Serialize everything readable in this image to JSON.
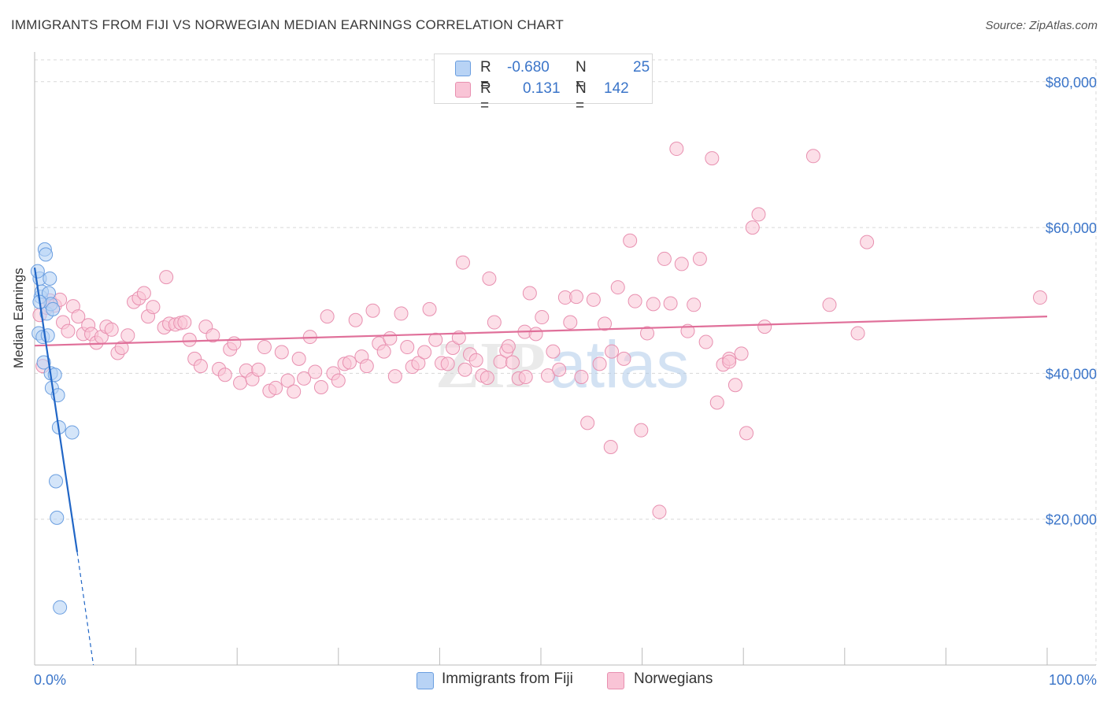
{
  "title": "IMMIGRANTS FROM FIJI VS NORWEGIAN MEDIAN EARNINGS CORRELATION CHART",
  "source": "Source: ZipAtlas.com",
  "watermark": {
    "zip": "ZIP",
    "atlas": "atlas"
  },
  "legend": {
    "fiji": {
      "r_label": "R =",
      "r_value": "-0.680",
      "n_label": "N =",
      "n_value": "25"
    },
    "norwegians": {
      "r_label": "R =",
      "r_value": "0.131",
      "n_label": "N =",
      "n_value": "142"
    }
  },
  "colors": {
    "fiji_fill": "#b8d3f5",
    "fiji_stroke": "#6a9ee0",
    "fiji_line": "#2166c6",
    "nor_fill": "#f9c4d6",
    "nor_stroke": "#e890b0",
    "nor_line": "#e0709a",
    "axis_text": "#3b75c9",
    "grid": "#d8d8d8"
  },
  "chart_data": {
    "type": "scatter",
    "title": "IMMIGRANTS FROM FIJI VS NORWEGIAN MEDIAN EARNINGS CORRELATION CHART",
    "xlabel": "",
    "ylabel": "Median Earnings",
    "xlim": [
      0,
      100
    ],
    "ylim": [
      0,
      83000
    ],
    "x_tick_labels": {
      "left": "0.0%",
      "right": "100.0%"
    },
    "y_ticks": [
      {
        "value": 20000,
        "label": "$20,000"
      },
      {
        "value": 40000,
        "label": "$40,000"
      },
      {
        "value": 60000,
        "label": "$60,000"
      },
      {
        "value": 80000,
        "label": "$80,000"
      }
    ],
    "series": [
      {
        "name": "Immigrants from Fiji",
        "trend": {
          "x0": 0.0,
          "y0": 54500,
          "x1": 4.2,
          "y1": 15500,
          "dash_to_x": 5.8,
          "dash_to_y": 0
        },
        "points": [
          [
            0.4,
            45500
          ],
          [
            0.5,
            53000
          ],
          [
            0.6,
            50500
          ],
          [
            0.7,
            51200
          ],
          [
            0.8,
            45000
          ],
          [
            0.9,
            41500
          ],
          [
            1.0,
            57000
          ],
          [
            1.1,
            56300
          ],
          [
            1.2,
            48200
          ],
          [
            1.3,
            45200
          ],
          [
            1.4,
            51000
          ],
          [
            1.5,
            53000
          ],
          [
            1.6,
            49500
          ],
          [
            1.6,
            40000
          ],
          [
            1.7,
            38000
          ],
          [
            1.8,
            48800
          ],
          [
            2.0,
            39800
          ],
          [
            2.1,
            25200
          ],
          [
            2.2,
            20200
          ],
          [
            2.3,
            37000
          ],
          [
            2.4,
            32600
          ],
          [
            2.5,
            7900
          ],
          [
            3.7,
            31900
          ],
          [
            0.3,
            54000
          ],
          [
            0.5,
            49800
          ]
        ]
      },
      {
        "name": "Norwegians",
        "trend": {
          "x0": 0.0,
          "y0": 43800,
          "x1": 100.0,
          "y1": 47800
        },
        "points": [
          [
            0.5,
            48000
          ],
          [
            0.8,
            41000
          ],
          [
            1.2,
            49000
          ],
          [
            1.5,
            50000
          ],
          [
            2.0,
            49300
          ],
          [
            2.5,
            50100
          ],
          [
            2.8,
            47000
          ],
          [
            3.3,
            45800
          ],
          [
            3.8,
            49200
          ],
          [
            4.3,
            47800
          ],
          [
            4.8,
            45400
          ],
          [
            5.3,
            46600
          ],
          [
            5.6,
            45400
          ],
          [
            6.1,
            44200
          ],
          [
            6.6,
            45000
          ],
          [
            7.1,
            46400
          ],
          [
            7.6,
            46000
          ],
          [
            8.2,
            42800
          ],
          [
            8.6,
            43500
          ],
          [
            9.2,
            45200
          ],
          [
            9.8,
            49800
          ],
          [
            10.3,
            50300
          ],
          [
            10.8,
            51000
          ],
          [
            11.2,
            47800
          ],
          [
            11.7,
            49100
          ],
          [
            12.8,
            46300
          ],
          [
            13.3,
            46800
          ],
          [
            13.9,
            46700
          ],
          [
            14.4,
            46900
          ],
          [
            14.8,
            47000
          ],
          [
            15.3,
            44600
          ],
          [
            15.8,
            42000
          ],
          [
            16.4,
            41000
          ],
          [
            16.9,
            46400
          ],
          [
            17.6,
            45200
          ],
          [
            18.2,
            40600
          ],
          [
            18.8,
            39800
          ],
          [
            19.3,
            43300
          ],
          [
            19.7,
            44100
          ],
          [
            20.3,
            38700
          ],
          [
            20.9,
            40400
          ],
          [
            21.5,
            39200
          ],
          [
            22.1,
            40500
          ],
          [
            22.7,
            43600
          ],
          [
            23.2,
            37600
          ],
          [
            23.8,
            38000
          ],
          [
            24.4,
            42900
          ],
          [
            25.0,
            39000
          ],
          [
            25.6,
            37500
          ],
          [
            26.1,
            42000
          ],
          [
            26.6,
            39300
          ],
          [
            27.2,
            45000
          ],
          [
            27.7,
            40200
          ],
          [
            28.3,
            38100
          ],
          [
            28.9,
            47800
          ],
          [
            29.5,
            40000
          ],
          [
            30.0,
            39000
          ],
          [
            30.6,
            41300
          ],
          [
            31.1,
            41500
          ],
          [
            31.7,
            47300
          ],
          [
            32.3,
            42300
          ],
          [
            32.8,
            41000
          ],
          [
            33.4,
            48600
          ],
          [
            34.0,
            44100
          ],
          [
            34.5,
            43000
          ],
          [
            35.1,
            44800
          ],
          [
            35.6,
            39600
          ],
          [
            36.2,
            48200
          ],
          [
            36.8,
            43600
          ],
          [
            37.3,
            40900
          ],
          [
            37.9,
            41400
          ],
          [
            38.5,
            42900
          ],
          [
            39.0,
            48800
          ],
          [
            39.6,
            44600
          ],
          [
            40.2,
            41400
          ],
          [
            40.8,
            41300
          ],
          [
            41.3,
            43500
          ],
          [
            41.9,
            44900
          ],
          [
            42.5,
            40500
          ],
          [
            43.0,
            42600
          ],
          [
            43.6,
            41800
          ],
          [
            44.2,
            39700
          ],
          [
            44.7,
            39400
          ],
          [
            45.4,
            47000
          ],
          [
            46.0,
            41600
          ],
          [
            46.6,
            43100
          ],
          [
            47.2,
            41500
          ],
          [
            47.8,
            39300
          ],
          [
            48.4,
            45700
          ],
          [
            48.9,
            51000
          ],
          [
            49.5,
            45400
          ],
          [
            50.1,
            47700
          ],
          [
            50.7,
            39700
          ],
          [
            51.2,
            43000
          ],
          [
            51.8,
            40500
          ],
          [
            52.4,
            50400
          ],
          [
            52.9,
            47000
          ],
          [
            53.5,
            50500
          ],
          [
            54.0,
            39500
          ],
          [
            54.6,
            33200
          ],
          [
            55.2,
            50100
          ],
          [
            55.8,
            41300
          ],
          [
            56.3,
            46800
          ],
          [
            57.0,
            43000
          ],
          [
            57.6,
            51800
          ],
          [
            58.2,
            42000
          ],
          [
            58.8,
            58200
          ],
          [
            59.3,
            49900
          ],
          [
            59.9,
            32200
          ],
          [
            60.5,
            45500
          ],
          [
            61.1,
            49500
          ],
          [
            61.7,
            21000
          ],
          [
            62.2,
            55700
          ],
          [
            62.8,
            49600
          ],
          [
            63.4,
            70800
          ],
          [
            63.9,
            55000
          ],
          [
            64.5,
            45800
          ],
          [
            65.1,
            49400
          ],
          [
            65.7,
            55700
          ],
          [
            66.3,
            44300
          ],
          [
            66.9,
            69500
          ],
          [
            67.4,
            36000
          ],
          [
            68.0,
            41200
          ],
          [
            68.6,
            42000
          ],
          [
            69.2,
            38400
          ],
          [
            69.8,
            42700
          ],
          [
            70.3,
            31800
          ],
          [
            70.9,
            60000
          ],
          [
            71.5,
            61800
          ],
          [
            72.1,
            46400
          ],
          [
            68.6,
            41600
          ],
          [
            76.9,
            69800
          ],
          [
            78.5,
            49400
          ],
          [
            81.3,
            45500
          ],
          [
            82.2,
            58000
          ],
          [
            99.3,
            50400
          ],
          [
            56.9,
            29900
          ],
          [
            42.3,
            55200
          ],
          [
            44.9,
            53000
          ],
          [
            13.0,
            53200
          ],
          [
            48.5,
            39500
          ],
          [
            46.8,
            43700
          ]
        ]
      }
    ]
  },
  "bottom_legend": {
    "fiji": "Immigrants from Fiji",
    "norwegians": "Norwegians"
  }
}
